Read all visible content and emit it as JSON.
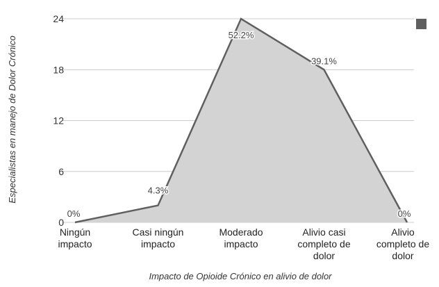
{
  "chart_data": {
    "type": "area",
    "categories": [
      [
        "Ningún",
        "impacto"
      ],
      [
        "Casi ningún",
        "impacto"
      ],
      [
        "Moderado",
        "impacto"
      ],
      [
        "Alivio casi",
        "completo de",
        "dolor"
      ],
      [
        "Alivio",
        "completo de",
        "dolor"
      ]
    ],
    "values": [
      0,
      2,
      24,
      18,
      0
    ],
    "data_labels": [
      "0%",
      "4.3%",
      "52.2%",
      "39.1%",
      "0%"
    ],
    "xlabel": "Impacto de Opioide Crónico en alivio de dolor",
    "ylabel": "Especialistas en manejo de Dolor Crónico",
    "ylim": [
      0,
      24
    ],
    "yticks": [
      0,
      6,
      12,
      18,
      24
    ],
    "grid": true,
    "legend": {
      "placement": "top-right",
      "entries": [
        ""
      ]
    },
    "colors": {
      "fill": "#d3d3d3",
      "line": "#5f5f5f",
      "grid": "#cccccc",
      "legend": "#5f5f5f"
    }
  }
}
